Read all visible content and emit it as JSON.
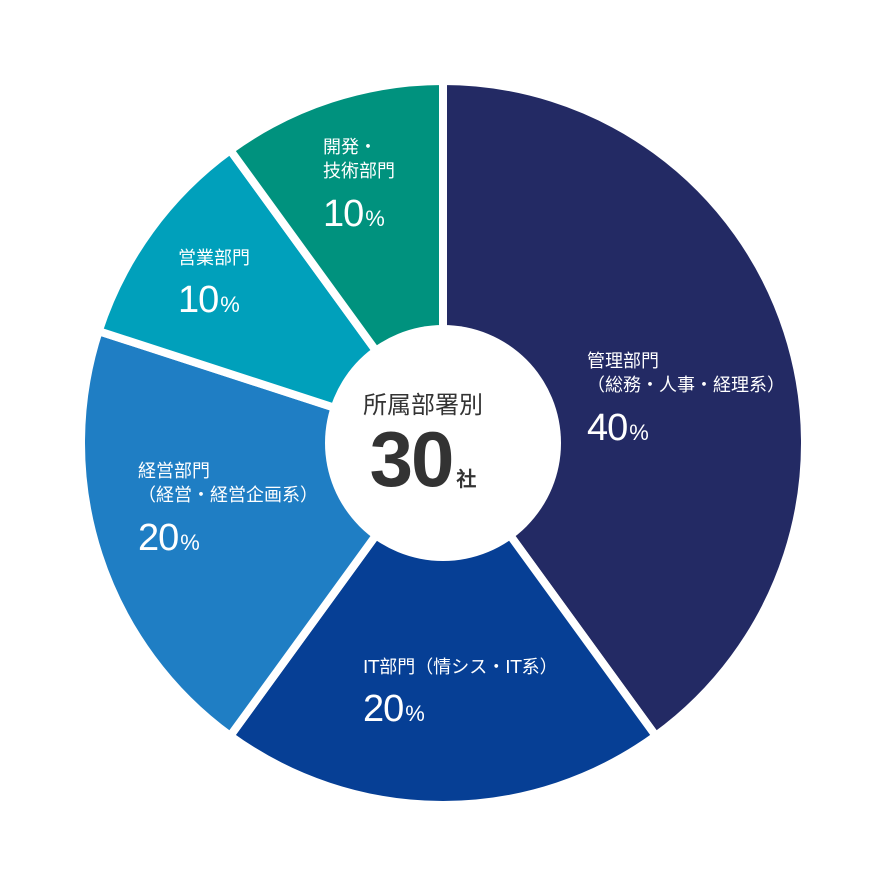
{
  "chart_data": {
    "type": "pie",
    "categories": [
      "管理部門\n（総務・人事・経理系）",
      "IT部門（情シス・IT系）",
      "経営部門\n（経営・経営企画系）",
      "営業部門",
      "開発・\n技術部門"
    ],
    "values": [
      40,
      20,
      20,
      10,
      10
    ],
    "unit": "%",
    "colors": [
      "#232a64",
      "#063f95",
      "#1f7ec4",
      "#00a0bb",
      "#00927e"
    ],
    "center_title": "所属部署別",
    "center_value": "30",
    "center_unit": "社"
  }
}
